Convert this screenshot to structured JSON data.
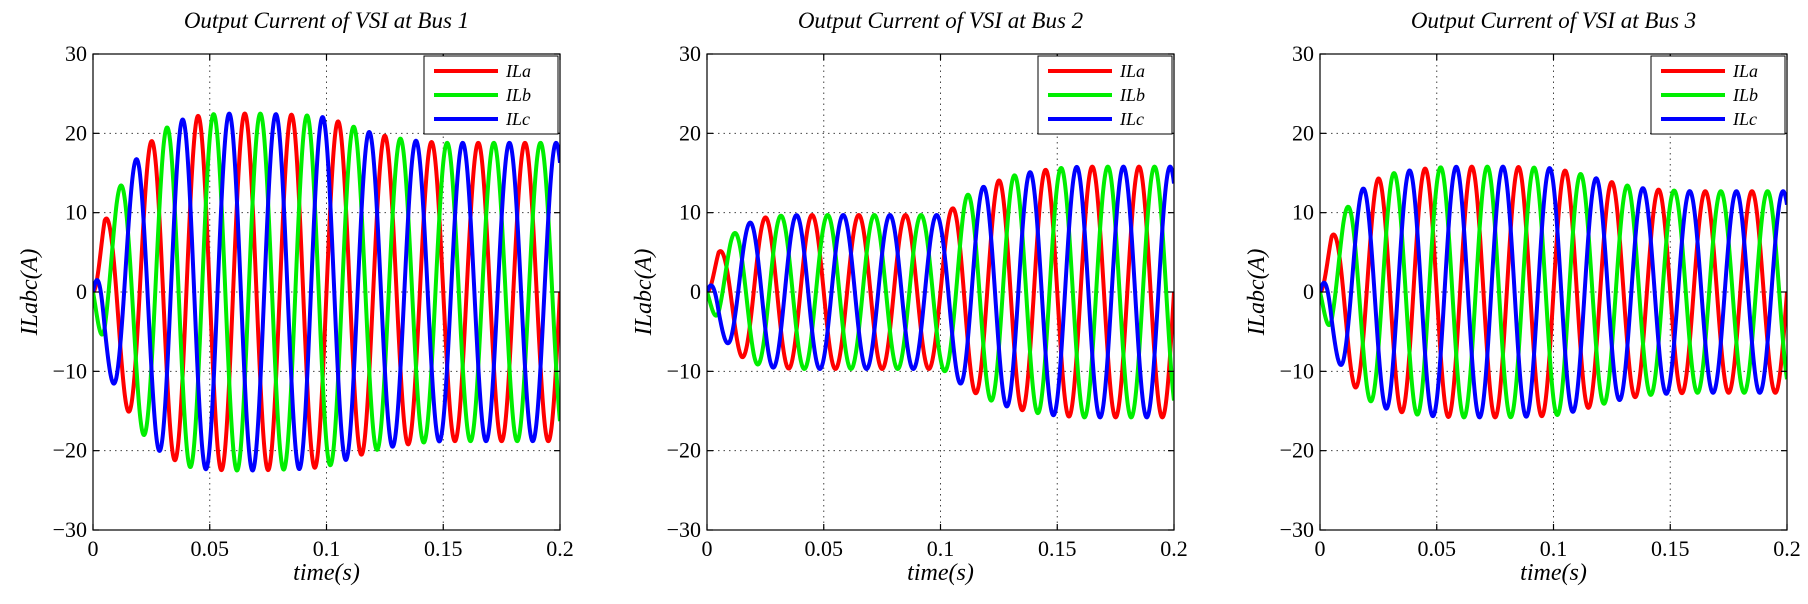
{
  "chart_data": [
    {
      "type": "line",
      "title": "Output Current of VSI at Bus 1",
      "xlabel": "time(s)",
      "ylabel": "ILabc(A)",
      "xlim": [
        0,
        0.2
      ],
      "ylim": [
        -30,
        30
      ],
      "xticks": [
        0,
        0.05,
        0.1,
        0.15,
        0.2
      ],
      "xtick_labels": [
        "0",
        "0.05",
        "0.1",
        "0.15",
        "0.2"
      ],
      "yticks": [
        -30,
        -20,
        -10,
        0,
        10,
        20,
        30
      ],
      "ytick_labels": [
        "−30",
        "−20",
        "−10",
        "0",
        "10",
        "20",
        "30"
      ],
      "grid": true,
      "legend_position": "top-right",
      "frequency_hz": 50,
      "envelope": {
        "t": [
          0,
          0.005,
          0.01,
          0.015,
          0.02,
          0.025,
          0.03,
          0.035,
          0.04,
          0.05,
          0.06,
          0.07,
          0.08,
          0.09,
          0.1,
          0.11,
          0.12,
          0.13,
          0.14,
          0.15,
          0.2
        ],
        "amplitude": [
          0,
          9,
          12.5,
          15,
          17.5,
          19,
          20.5,
          21.2,
          22,
          22.4,
          22.5,
          22.5,
          22.4,
          22.3,
          22,
          21,
          20,
          19.4,
          19,
          18.8,
          18.8
        ]
      },
      "series": [
        {
          "name": "ILa",
          "color": "#ff0000",
          "phase_deg": 0
        },
        {
          "name": "ILb",
          "color": "#00ee00",
          "phase_deg": -120
        },
        {
          "name": "ILc",
          "color": "#0000ff",
          "phase_deg": 120
        }
      ]
    },
    {
      "type": "line",
      "title": "Output Current of VSI at Bus 2",
      "xlabel": "time(s)",
      "ylabel": "ILabc(A)",
      "xlim": [
        0,
        0.2
      ],
      "ylim": [
        -30,
        30
      ],
      "xticks": [
        0,
        0.05,
        0.1,
        0.15,
        0.2
      ],
      "xtick_labels": [
        "0",
        "0.05",
        "0.1",
        "0.15",
        "0.2"
      ],
      "yticks": [
        -30,
        -20,
        -10,
        0,
        10,
        20,
        30
      ],
      "ytick_labels": [
        "−30",
        "−20",
        "−10",
        "0",
        "10",
        "20",
        "30"
      ],
      "grid": true,
      "legend_position": "top-right",
      "frequency_hz": 50,
      "envelope": {
        "t": [
          0,
          0.005,
          0.01,
          0.015,
          0.02,
          0.025,
          0.03,
          0.04,
          0.05,
          0.06,
          0.07,
          0.08,
          0.09,
          0.1,
          0.105,
          0.11,
          0.12,
          0.13,
          0.14,
          0.15,
          0.16,
          0.2
        ],
        "amplitude": [
          0,
          5,
          7,
          8.2,
          9,
          9.4,
          9.6,
          9.7,
          9.7,
          9.7,
          9.7,
          9.7,
          9.7,
          9.7,
          10.5,
          12,
          13.5,
          14.6,
          15.2,
          15.6,
          15.8,
          15.8
        ]
      },
      "series": [
        {
          "name": "ILa",
          "color": "#ff0000",
          "phase_deg": 0
        },
        {
          "name": "ILb",
          "color": "#00ee00",
          "phase_deg": -120
        },
        {
          "name": "ILc",
          "color": "#0000ff",
          "phase_deg": 120
        }
      ]
    },
    {
      "type": "line",
      "title": "Output Current of VSI at Bus 3",
      "xlabel": "time(s)",
      "ylabel": "ILabc(A)",
      "xlim": [
        0,
        0.2
      ],
      "ylim": [
        -30,
        30
      ],
      "xticks": [
        0,
        0.05,
        0.1,
        0.15,
        0.2
      ],
      "xtick_labels": [
        "0",
        "0.05",
        "0.1",
        "0.15",
        "0.2"
      ],
      "yticks": [
        -30,
        -20,
        -10,
        0,
        10,
        20,
        30
      ],
      "ytick_labels": [
        "−30",
        "−20",
        "−10",
        "0",
        "10",
        "20",
        "30"
      ],
      "grid": true,
      "legend_position": "top-right",
      "frequency_hz": 50,
      "envelope": {
        "t": [
          0,
          0.005,
          0.01,
          0.015,
          0.02,
          0.025,
          0.03,
          0.04,
          0.05,
          0.06,
          0.07,
          0.08,
          0.09,
          0.1,
          0.11,
          0.12,
          0.13,
          0.14,
          0.15,
          0.16,
          0.2
        ],
        "amplitude": [
          0,
          7,
          10,
          12,
          13.5,
          14.3,
          14.9,
          15.4,
          15.7,
          15.8,
          15.8,
          15.8,
          15.7,
          15.6,
          15,
          14.2,
          13.5,
          13,
          12.8,
          12.7,
          12.7
        ]
      },
      "series": [
        {
          "name": "ILa",
          "color": "#ff0000",
          "phase_deg": 0
        },
        {
          "name": "ILb",
          "color": "#00ee00",
          "phase_deg": -120
        },
        {
          "name": "ILc",
          "color": "#0000ff",
          "phase_deg": 120
        }
      ]
    }
  ]
}
